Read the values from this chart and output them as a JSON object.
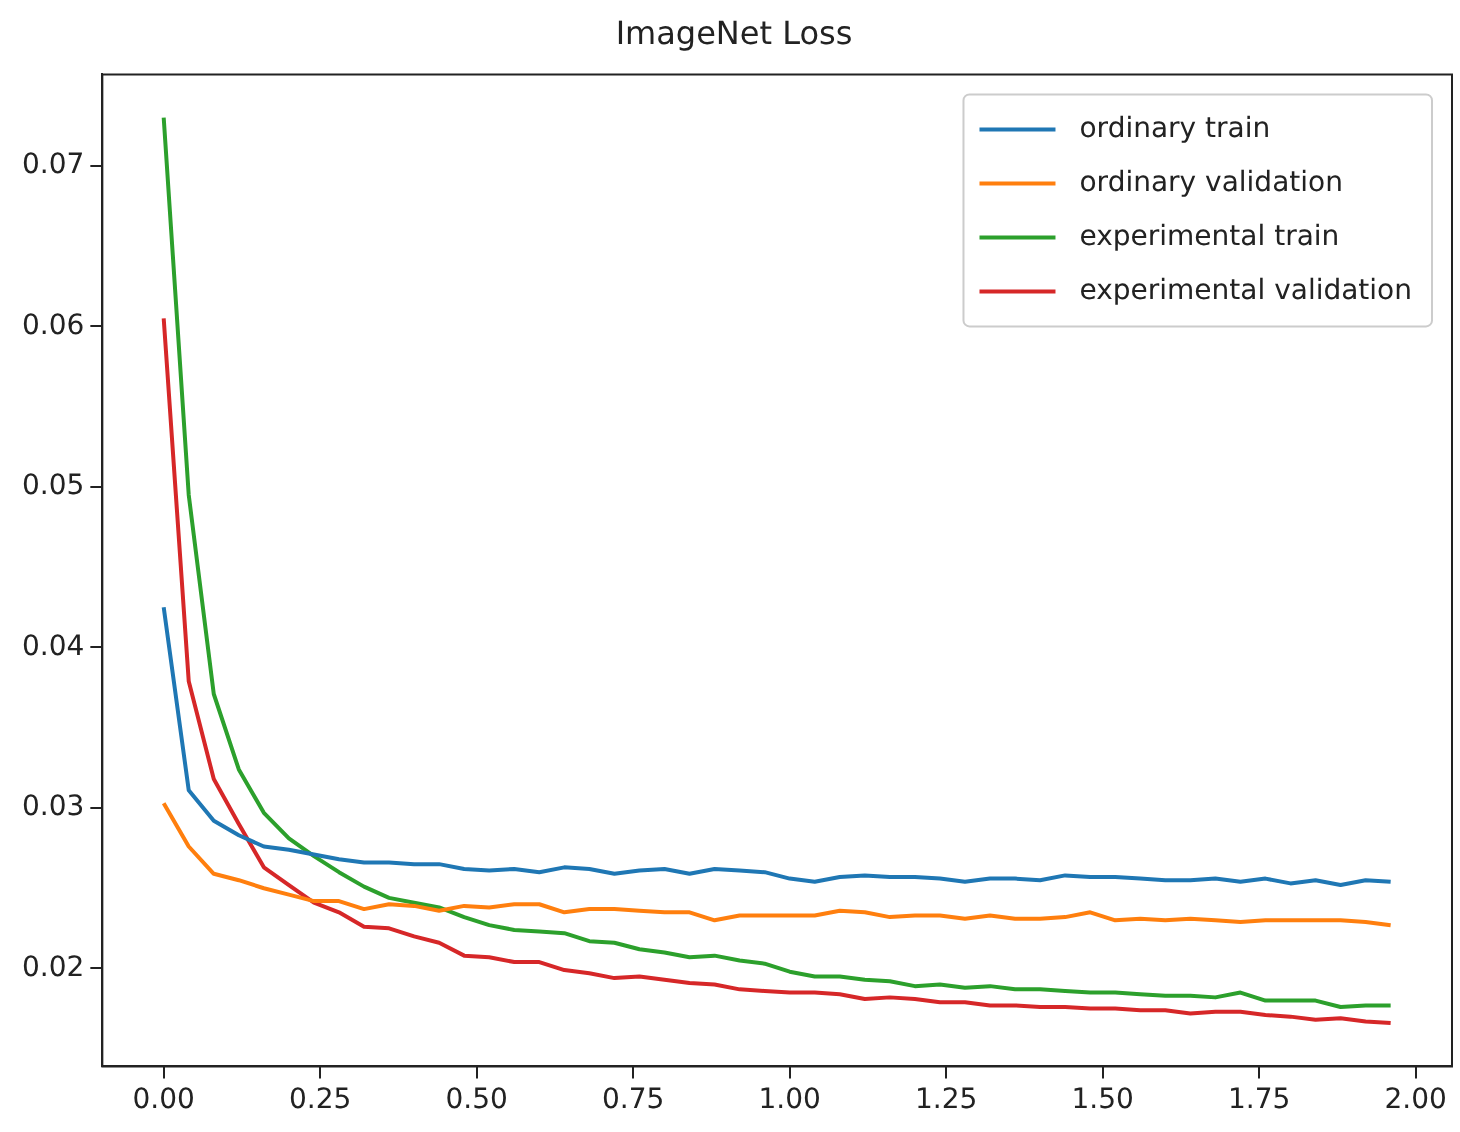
{
  "chart_data": {
    "type": "line",
    "title": "ImageNet Loss",
    "x": [
      0,
      0.04,
      0.08,
      0.12,
      0.16,
      0.2,
      0.24,
      0.28,
      0.32,
      0.36,
      0.4,
      0.44,
      0.48,
      0.52,
      0.56,
      0.6,
      0.64,
      0.68,
      0.72,
      0.76,
      0.8,
      0.84,
      0.88,
      0.92,
      0.96,
      1.0,
      1.04,
      1.08,
      1.12,
      1.16,
      1.2,
      1.24,
      1.28,
      1.32,
      1.36,
      1.4,
      1.44,
      1.48,
      1.52,
      1.56,
      1.6,
      1.64,
      1.68,
      1.72,
      1.76,
      1.8,
      1.84,
      1.88,
      1.92,
      1.96
    ],
    "series": [
      {
        "name": "ordinary train",
        "color": "#1f77b4",
        "values": [
          0.0425,
          0.0311,
          0.0292,
          0.0283,
          0.0276,
          0.0274,
          0.0271,
          0.0268,
          0.0266,
          0.0266,
          0.0265,
          0.0265,
          0.0262,
          0.0261,
          0.0262,
          0.026,
          0.0263,
          0.0262,
          0.0259,
          0.0261,
          0.0262,
          0.0259,
          0.0262,
          0.0261,
          0.026,
          0.0256,
          0.0254,
          0.0257,
          0.0258,
          0.0257,
          0.0257,
          0.0256,
          0.0254,
          0.0256,
          0.0256,
          0.0255,
          0.0258,
          0.0257,
          0.0257,
          0.0256,
          0.0255,
          0.0255,
          0.0256,
          0.0254,
          0.0256,
          0.0253,
          0.0255,
          0.0252,
          0.0255,
          0.0254
        ]
      },
      {
        "name": "ordinary validation",
        "color": "#ff7f0e",
        "values": [
          0.0303,
          0.0276,
          0.0259,
          0.0255,
          0.025,
          0.0246,
          0.0242,
          0.0242,
          0.0237,
          0.024,
          0.0239,
          0.0236,
          0.0239,
          0.0238,
          0.024,
          0.024,
          0.0235,
          0.0237,
          0.0237,
          0.0236,
          0.0235,
          0.0235,
          0.023,
          0.0233,
          0.0233,
          0.0233,
          0.0233,
          0.0236,
          0.0235,
          0.0232,
          0.0233,
          0.0233,
          0.0231,
          0.0233,
          0.0231,
          0.0231,
          0.0232,
          0.0235,
          0.023,
          0.0231,
          0.023,
          0.0231,
          0.023,
          0.0229,
          0.023,
          0.023,
          0.023,
          0.023,
          0.0229,
          0.0227
        ]
      },
      {
        "name": "experimental train",
        "color": "#2ca02c",
        "values": [
          0.073,
          0.0495,
          0.0371,
          0.0324,
          0.0297,
          0.0281,
          0.027,
          0.026,
          0.0251,
          0.0244,
          0.0241,
          0.0238,
          0.0232,
          0.0227,
          0.0224,
          0.0223,
          0.0222,
          0.0217,
          0.0216,
          0.0212,
          0.021,
          0.0207,
          0.0208,
          0.0205,
          0.0203,
          0.0198,
          0.0195,
          0.0195,
          0.0193,
          0.0192,
          0.0189,
          0.019,
          0.0188,
          0.0189,
          0.0187,
          0.0187,
          0.0186,
          0.0185,
          0.0185,
          0.0184,
          0.0183,
          0.0183,
          0.0182,
          0.0185,
          0.018,
          0.018,
          0.018,
          0.0176,
          0.0177,
          0.0177
        ]
      },
      {
        "name": "experimental validation",
        "color": "#d62728",
        "values": [
          0.0605,
          0.0379,
          0.0318,
          0.029,
          0.0263,
          0.0252,
          0.0241,
          0.0235,
          0.0226,
          0.0225,
          0.022,
          0.0216,
          0.0208,
          0.0207,
          0.0204,
          0.0204,
          0.0199,
          0.0197,
          0.0194,
          0.0195,
          0.0193,
          0.0191,
          0.019,
          0.0187,
          0.0186,
          0.0185,
          0.0185,
          0.0184,
          0.0181,
          0.0182,
          0.0181,
          0.0179,
          0.0179,
          0.0177,
          0.0177,
          0.0176,
          0.0176,
          0.0175,
          0.0175,
          0.0174,
          0.0174,
          0.0172,
          0.0173,
          0.0173,
          0.0171,
          0.017,
          0.0168,
          0.0169,
          0.0167,
          0.0166
        ]
      }
    ],
    "xlim": [
      -0.098,
      2.058
    ],
    "xticks": [
      {
        "value": 0,
        "label": "0.00"
      },
      {
        "value": 0.25,
        "label": "0.25"
      },
      {
        "value": 0.5,
        "label": "0.50"
      },
      {
        "value": 0.75,
        "label": "0.75"
      },
      {
        "value": 1,
        "label": "1.00"
      },
      {
        "value": 1.25,
        "label": "1.25"
      },
      {
        "value": 1.5,
        "label": "1.50"
      },
      {
        "value": 1.75,
        "label": "1.75"
      },
      {
        "value": 2,
        "label": "2.00"
      }
    ],
    "ylim": [
      0.0139,
      0.0757
    ],
    "yticks": [
      0.02,
      0.03,
      0.04,
      0.05,
      0.06,
      0.07
    ],
    "grid": false,
    "legend": "top right",
    "marker": "none",
    "line_style": "solid"
  }
}
